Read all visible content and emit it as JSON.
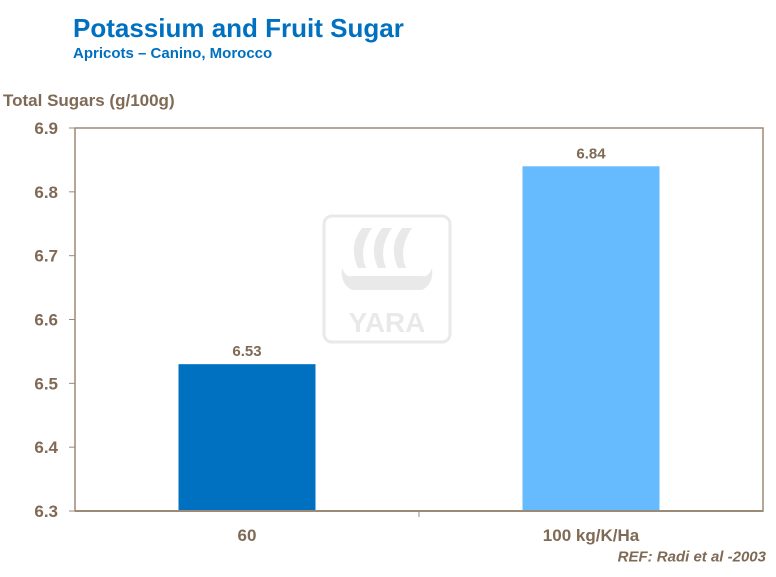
{
  "chart_data": {
    "type": "bar",
    "title": "Potassium and Fruit Sugar",
    "subtitle": "Apricots – Canino, Morocco",
    "ylabel": "Total Sugars (g/100g)",
    "xlabel": "",
    "categories": [
      "60",
      "100 kg/K/Ha"
    ],
    "values": [
      6.53,
      6.84
    ],
    "data_labels": [
      "6.53",
      "6.84"
    ],
    "bar_colors": [
      "#0070C0",
      "#66BBFF"
    ],
    "ylim": [
      6.3,
      6.9
    ],
    "yticks": [
      "6.3",
      "6.4",
      "6.5",
      "6.6",
      "6.7",
      "6.8",
      "6.9"
    ],
    "grid": false,
    "legend": "none",
    "axis_color": "#9C8A78",
    "text_color": "#7F6A55",
    "watermark": "YARA"
  },
  "footer": {
    "reference": "REF:  Radi et al -2003"
  }
}
